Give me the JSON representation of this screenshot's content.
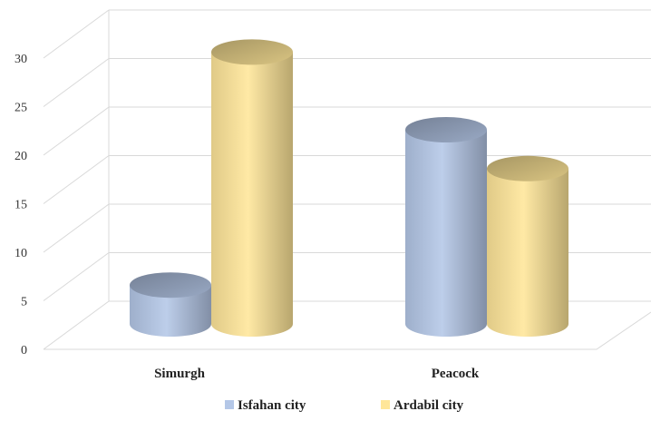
{
  "chart_data": {
    "type": "bar",
    "style": "3d-cylinder",
    "categories": [
      "Simurgh",
      "Peacock"
    ],
    "series": [
      {
        "name": "Isfahan city",
        "values": [
          4,
          20
        ]
      },
      {
        "name": "Ardabil city",
        "values": [
          28,
          16
        ]
      }
    ],
    "ylim": [
      0,
      30
    ],
    "yticks": [
      0,
      5,
      10,
      15,
      20,
      25,
      30
    ],
    "grid": true,
    "legend_position": "bottom",
    "colors": {
      "Isfahan city": "#b4c7e7",
      "Ardabil city": "#ffe699",
      "grid": "#d9d9d9"
    }
  }
}
